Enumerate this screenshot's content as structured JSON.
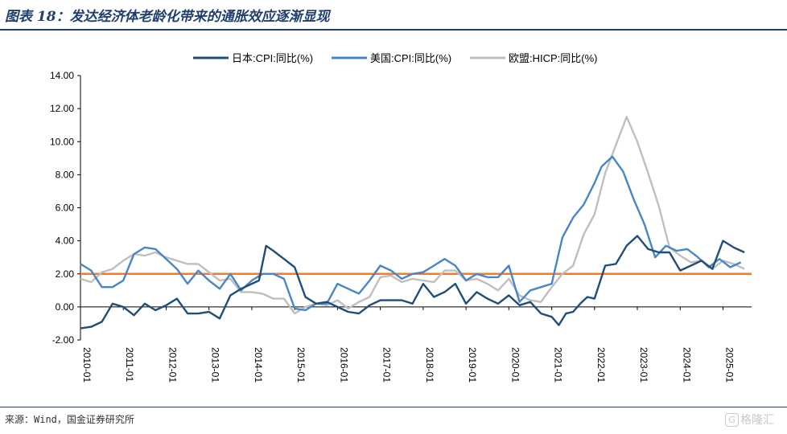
{
  "header": {
    "title": "图表 18：发达经济体老龄化带来的通胀效应逐渐显现"
  },
  "footer": {
    "source": "来源：Wind，国金证券研究所",
    "watermark": "格隆汇",
    "watermark_badge": "G"
  },
  "chart_data": {
    "type": "line",
    "xlabel": "",
    "ylabel": "",
    "ylim": [
      -2,
      14
    ],
    "yticks": [
      "14.00",
      "12.00",
      "10.00",
      "8.00",
      "6.00",
      "4.00",
      "2.00",
      "0.00",
      "-2.00"
    ],
    "yticks_values": [
      14,
      12,
      10,
      8,
      6,
      4,
      2,
      0,
      -2
    ],
    "xticks": [
      "2010-01",
      "2011-01",
      "2012-01",
      "2013-01",
      "2014-01",
      "2015-01",
      "2016-01",
      "2017-01",
      "2018-01",
      "2019-01",
      "2020-01",
      "2021-01",
      "2022-01",
      "2023-01",
      "2024-01",
      "2025-01"
    ],
    "legend_position": "top",
    "reference_line": {
      "y": 2.0,
      "color": "#ed7d31"
    },
    "colors": {
      "japan": "#1f4e79",
      "us": "#4a86c5",
      "eu": "#bfbfbf"
    },
    "series": [
      {
        "name": "日本:CPI:同比(%)",
        "color": "#1f4e79",
        "points": [
          [
            "2010-01",
            -1.3
          ],
          [
            "2010-04",
            -1.2
          ],
          [
            "2010-07",
            -0.9
          ],
          [
            "2010-10",
            0.2
          ],
          [
            "2011-01",
            0.0
          ],
          [
            "2011-04",
            -0.5
          ],
          [
            "2011-07",
            0.2
          ],
          [
            "2011-10",
            -0.2
          ],
          [
            "2012-01",
            0.1
          ],
          [
            "2012-04",
            0.5
          ],
          [
            "2012-07",
            -0.4
          ],
          [
            "2012-10",
            -0.4
          ],
          [
            "2013-01",
            -0.3
          ],
          [
            "2013-04",
            -0.7
          ],
          [
            "2013-07",
            0.7
          ],
          [
            "2013-10",
            1.1
          ],
          [
            "2014-01",
            1.4
          ],
          [
            "2014-03",
            1.6
          ],
          [
            "2014-05",
            3.7
          ],
          [
            "2014-07",
            3.4
          ],
          [
            "2014-10",
            2.9
          ],
          [
            "2015-01",
            2.4
          ],
          [
            "2015-04",
            0.6
          ],
          [
            "2015-07",
            0.2
          ],
          [
            "2015-10",
            0.3
          ],
          [
            "2016-01",
            0.0
          ],
          [
            "2016-04",
            -0.3
          ],
          [
            "2016-07",
            -0.4
          ],
          [
            "2016-10",
            0.1
          ],
          [
            "2017-01",
            0.4
          ],
          [
            "2017-04",
            0.4
          ],
          [
            "2017-07",
            0.4
          ],
          [
            "2017-10",
            0.2
          ],
          [
            "2018-01",
            1.4
          ],
          [
            "2018-04",
            0.6
          ],
          [
            "2018-07",
            0.9
          ],
          [
            "2018-10",
            1.4
          ],
          [
            "2019-01",
            0.2
          ],
          [
            "2019-04",
            0.9
          ],
          [
            "2019-07",
            0.5
          ],
          [
            "2019-10",
            0.2
          ],
          [
            "2020-01",
            0.7
          ],
          [
            "2020-04",
            0.1
          ],
          [
            "2020-07",
            0.3
          ],
          [
            "2020-10",
            -0.4
          ],
          [
            "2021-01",
            -0.6
          ],
          [
            "2021-03",
            -1.1
          ],
          [
            "2021-05",
            -0.4
          ],
          [
            "2021-07",
            -0.3
          ],
          [
            "2021-09",
            0.2
          ],
          [
            "2021-11",
            0.6
          ],
          [
            "2022-01",
            0.5
          ],
          [
            "2022-04",
            2.5
          ],
          [
            "2022-07",
            2.6
          ],
          [
            "2022-10",
            3.7
          ],
          [
            "2023-01",
            4.3
          ],
          [
            "2023-04",
            3.5
          ],
          [
            "2023-07",
            3.3
          ],
          [
            "2023-10",
            3.3
          ],
          [
            "2024-01",
            2.2
          ],
          [
            "2024-04",
            2.5
          ],
          [
            "2024-07",
            2.8
          ],
          [
            "2024-10",
            2.3
          ],
          [
            "2025-01",
            4.0
          ],
          [
            "2025-04",
            3.6
          ],
          [
            "2025-07",
            3.3
          ]
        ]
      },
      {
        "name": "美国:CPI:同比(%)",
        "color": "#4a86c5",
        "points": [
          [
            "2010-01",
            2.6
          ],
          [
            "2010-04",
            2.2
          ],
          [
            "2010-07",
            1.2
          ],
          [
            "2010-10",
            1.2
          ],
          [
            "2011-01",
            1.6
          ],
          [
            "2011-04",
            3.2
          ],
          [
            "2011-07",
            3.6
          ],
          [
            "2011-10",
            3.5
          ],
          [
            "2012-01",
            2.9
          ],
          [
            "2012-04",
            2.3
          ],
          [
            "2012-07",
            1.4
          ],
          [
            "2012-10",
            2.2
          ],
          [
            "2013-01",
            1.6
          ],
          [
            "2013-04",
            1.1
          ],
          [
            "2013-07",
            2.0
          ],
          [
            "2013-10",
            1.0
          ],
          [
            "2014-01",
            1.6
          ],
          [
            "2014-04",
            2.0
          ],
          [
            "2014-07",
            2.0
          ],
          [
            "2014-10",
            1.7
          ],
          [
            "2015-01",
            -0.1
          ],
          [
            "2015-04",
            -0.2
          ],
          [
            "2015-07",
            0.2
          ],
          [
            "2015-10",
            0.2
          ],
          [
            "2016-01",
            1.4
          ],
          [
            "2016-04",
            1.1
          ],
          [
            "2016-07",
            0.8
          ],
          [
            "2016-10",
            1.6
          ],
          [
            "2017-01",
            2.5
          ],
          [
            "2017-04",
            2.2
          ],
          [
            "2017-07",
            1.7
          ],
          [
            "2017-10",
            2.0
          ],
          [
            "2018-01",
            2.1
          ],
          [
            "2018-04",
            2.5
          ],
          [
            "2018-07",
            2.9
          ],
          [
            "2018-10",
            2.5
          ],
          [
            "2019-01",
            1.6
          ],
          [
            "2019-04",
            2.0
          ],
          [
            "2019-07",
            1.8
          ],
          [
            "2019-10",
            1.8
          ],
          [
            "2020-01",
            2.5
          ],
          [
            "2020-04",
            0.3
          ],
          [
            "2020-07",
            1.0
          ],
          [
            "2020-10",
            1.2
          ],
          [
            "2021-01",
            1.4
          ],
          [
            "2021-04",
            4.2
          ],
          [
            "2021-07",
            5.4
          ],
          [
            "2021-10",
            6.2
          ],
          [
            "2022-01",
            7.5
          ],
          [
            "2022-03",
            8.5
          ],
          [
            "2022-06",
            9.1
          ],
          [
            "2022-09",
            8.2
          ],
          [
            "2022-12",
            6.5
          ],
          [
            "2023-03",
            5.0
          ],
          [
            "2023-06",
            3.0
          ],
          [
            "2023-09",
            3.7
          ],
          [
            "2023-12",
            3.4
          ],
          [
            "2024-03",
            3.5
          ],
          [
            "2024-06",
            3.0
          ],
          [
            "2024-09",
            2.4
          ],
          [
            "2024-12",
            2.9
          ],
          [
            "2025-03",
            2.4
          ],
          [
            "2025-06",
            2.7
          ]
        ]
      },
      {
        "name": "欧盟:HICP:同比(%)",
        "color": "#bfbfbf",
        "points": [
          [
            "2010-01",
            1.7
          ],
          [
            "2010-04",
            1.5
          ],
          [
            "2010-07",
            2.1
          ],
          [
            "2010-10",
            2.3
          ],
          [
            "2011-01",
            2.8
          ],
          [
            "2011-04",
            3.2
          ],
          [
            "2011-07",
            3.1
          ],
          [
            "2011-10",
            3.3
          ],
          [
            "2012-01",
            3.0
          ],
          [
            "2012-04",
            2.8
          ],
          [
            "2012-07",
            2.6
          ],
          [
            "2012-10",
            2.6
          ],
          [
            "2013-01",
            2.1
          ],
          [
            "2013-04",
            1.6
          ],
          [
            "2013-07",
            1.7
          ],
          [
            "2013-10",
            0.9
          ],
          [
            "2014-01",
            0.9
          ],
          [
            "2014-04",
            0.8
          ],
          [
            "2014-07",
            0.5
          ],
          [
            "2014-10",
            0.5
          ],
          [
            "2015-01",
            -0.4
          ],
          [
            "2015-04",
            0.0
          ],
          [
            "2015-07",
            0.2
          ],
          [
            "2015-10",
            0.1
          ],
          [
            "2016-01",
            0.4
          ],
          [
            "2016-04",
            -0.1
          ],
          [
            "2016-07",
            0.3
          ],
          [
            "2016-10",
            0.6
          ],
          [
            "2017-01",
            1.8
          ],
          [
            "2017-04",
            1.9
          ],
          [
            "2017-07",
            1.5
          ],
          [
            "2017-10",
            1.7
          ],
          [
            "2018-01",
            1.6
          ],
          [
            "2018-04",
            1.5
          ],
          [
            "2018-07",
            2.2
          ],
          [
            "2018-10",
            2.2
          ],
          [
            "2019-01",
            1.6
          ],
          [
            "2019-04",
            1.7
          ],
          [
            "2019-07",
            1.4
          ],
          [
            "2019-10",
            1.0
          ],
          [
            "2020-01",
            1.7
          ],
          [
            "2020-04",
            0.7
          ],
          [
            "2020-07",
            0.4
          ],
          [
            "2020-10",
            0.3
          ],
          [
            "2021-01",
            1.2
          ],
          [
            "2021-04",
            2.0
          ],
          [
            "2021-07",
            2.5
          ],
          [
            "2021-10",
            4.4
          ],
          [
            "2022-01",
            5.6
          ],
          [
            "2022-04",
            8.1
          ],
          [
            "2022-07",
            9.8
          ],
          [
            "2022-10",
            11.5
          ],
          [
            "2023-01",
            10.0
          ],
          [
            "2023-04",
            8.1
          ],
          [
            "2023-07",
            6.1
          ],
          [
            "2023-10",
            3.6
          ],
          [
            "2024-01",
            3.1
          ],
          [
            "2024-04",
            2.7
          ],
          [
            "2024-07",
            2.8
          ],
          [
            "2024-10",
            2.3
          ],
          [
            "2025-01",
            2.8
          ],
          [
            "2025-04",
            2.6
          ],
          [
            "2025-07",
            2.3
          ]
        ]
      }
    ]
  }
}
